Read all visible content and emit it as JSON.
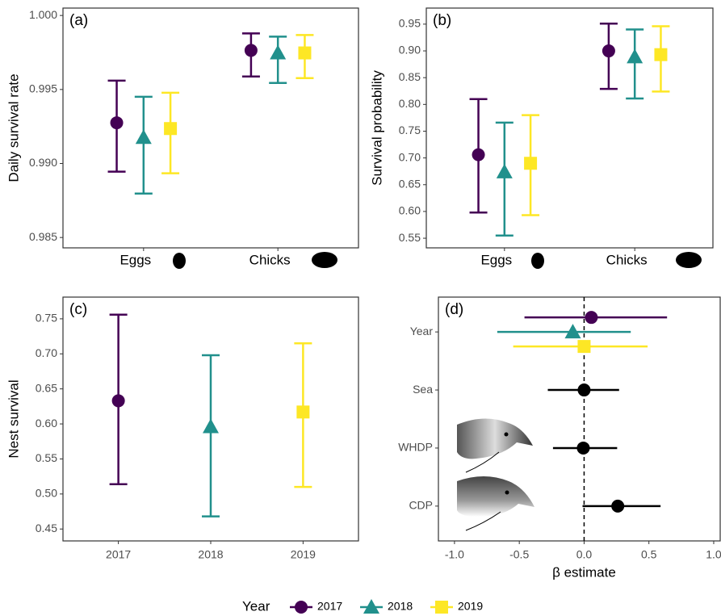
{
  "legend": {
    "title": "Year"
  },
  "chart_data": [
    {
      "type": "errorbar",
      "tag": "(a)",
      "y_label": "Daily survival rate",
      "categories": [
        "Eggs",
        "Chicks"
      ],
      "series": [
        {
          "name": "2017",
          "color": "#440154",
          "marker": "circle",
          "values": [
            0.99275,
            0.99764
          ],
          "lower": [
            0.98945,
            0.99588
          ],
          "upper": [
            0.9956,
            0.99879
          ]
        },
        {
          "name": "2018",
          "color": "#21908c",
          "marker": "triangle",
          "values": [
            0.99176,
            0.99747
          ],
          "lower": [
            0.98797,
            0.99544
          ],
          "upper": [
            0.99451,
            0.99857
          ]
        },
        {
          "name": "2019",
          "color": "#fde725",
          "marker": "square",
          "values": [
            0.99236,
            0.99747
          ],
          "lower": [
            0.98934,
            0.99577
          ],
          "upper": [
            0.99478,
            0.99868
          ]
        }
      ],
      "ylim": [
        0.9843,
        1.0005
      ],
      "yticks": [
        {
          "value": 1,
          "label": "1.000"
        },
        0.995,
        {
          "value": 0.99,
          "label": "0.990"
        },
        0.985
      ]
    },
    {
      "type": "errorbar",
      "tag": "(b)",
      "y_label": "Survival probability",
      "categories": [
        "Eggs",
        "Chicks"
      ],
      "series": [
        {
          "color": "#440154",
          "marker": "circle",
          "values": [
            0.706,
            0.9
          ],
          "lower": [
            0.598,
            0.829
          ],
          "upper": [
            0.81,
            0.951
          ]
        },
        {
          "color": "#21908c",
          "marker": "triangle",
          "values": [
            0.674,
            0.889
          ],
          "lower": [
            0.555,
            0.811
          ],
          "upper": [
            0.766,
            0.94
          ]
        },
        {
          "color": "#fde725",
          "marker": "square",
          "values": [
            0.69,
            0.893
          ],
          "lower": [
            0.593,
            0.824
          ],
          "upper": [
            0.78,
            0.946
          ]
        }
      ],
      "ylim": [
        0.532,
        0.98
      ],
      "yticks": [
        0.95,
        {
          "value": 0.9,
          "label": "0.90"
        },
        0.85,
        {
          "value": 0.8,
          "label": "0.80"
        },
        0.75,
        {
          "value": 0.7,
          "label": "0.70"
        },
        0.65,
        {
          "value": 0.6,
          "label": "0.60"
        },
        0.55
      ]
    },
    {
      "type": "errorbar",
      "tag": "(c)",
      "y_label": "Nest survival",
      "categories": [
        "2017",
        "2018",
        "2019"
      ],
      "values": [
        0.633,
        0.596,
        0.617
      ],
      "lower": [
        0.514,
        0.468,
        0.51
      ],
      "upper": [
        0.756,
        0.698,
        0.715
      ],
      "colors": [
        "#440154",
        "#21908c",
        "#fde725"
      ],
      "markers": [
        "circle",
        "triangle",
        "square"
      ],
      "ylim": [
        0.433,
        0.781
      ],
      "yticks": [
        0.75,
        {
          "value": 0.7,
          "label": "0.70"
        },
        0.65,
        {
          "value": 0.6,
          "label": "0.60"
        },
        0.55,
        {
          "value": 0.5,
          "label": "0.50"
        },
        0.45
      ]
    },
    {
      "type": "coefplot",
      "tag": "(d)",
      "x_label": "β estimate",
      "categories": [
        "Year",
        "Sea",
        "WHDP",
        "CDP"
      ],
      "series": [
        {
          "color": "#440154",
          "marker": "circle",
          "values": [
            0.056,
            null,
            null,
            null
          ],
          "lower": [
            -0.46,
            null,
            null,
            null
          ],
          "upper": [
            0.64,
            null,
            null,
            null
          ]
        },
        {
          "color": "#21908c",
          "marker": "triangle",
          "values": [
            -0.087,
            null,
            null,
            null
          ],
          "lower": [
            -0.67,
            null,
            null,
            null
          ],
          "upper": [
            0.36,
            null,
            null,
            null
          ]
        },
        {
          "color": "#fde725",
          "marker": "square",
          "values": [
            0,
            null,
            null,
            null
          ],
          "lower": [
            -0.547,
            null,
            null,
            null
          ],
          "upper": [
            0.49,
            null,
            null,
            null
          ]
        },
        {
          "color": "#000000",
          "marker": "circle",
          "values": [
            null,
            0,
            -0.006,
            0.26
          ],
          "lower": [
            null,
            -0.28,
            -0.24,
            -0.012
          ],
          "upper": [
            null,
            0.27,
            0.255,
            0.59
          ]
        }
      ],
      "refline": 0,
      "xlim": [
        -1.124,
        1.05
      ],
      "xticks": [
        {
          "value": -1,
          "label": "-1.0"
        },
        -0.5,
        {
          "value": 0,
          "label": "0.0"
        },
        0.5,
        {
          "value": 1,
          "label": "1.0"
        }
      ]
    }
  ]
}
